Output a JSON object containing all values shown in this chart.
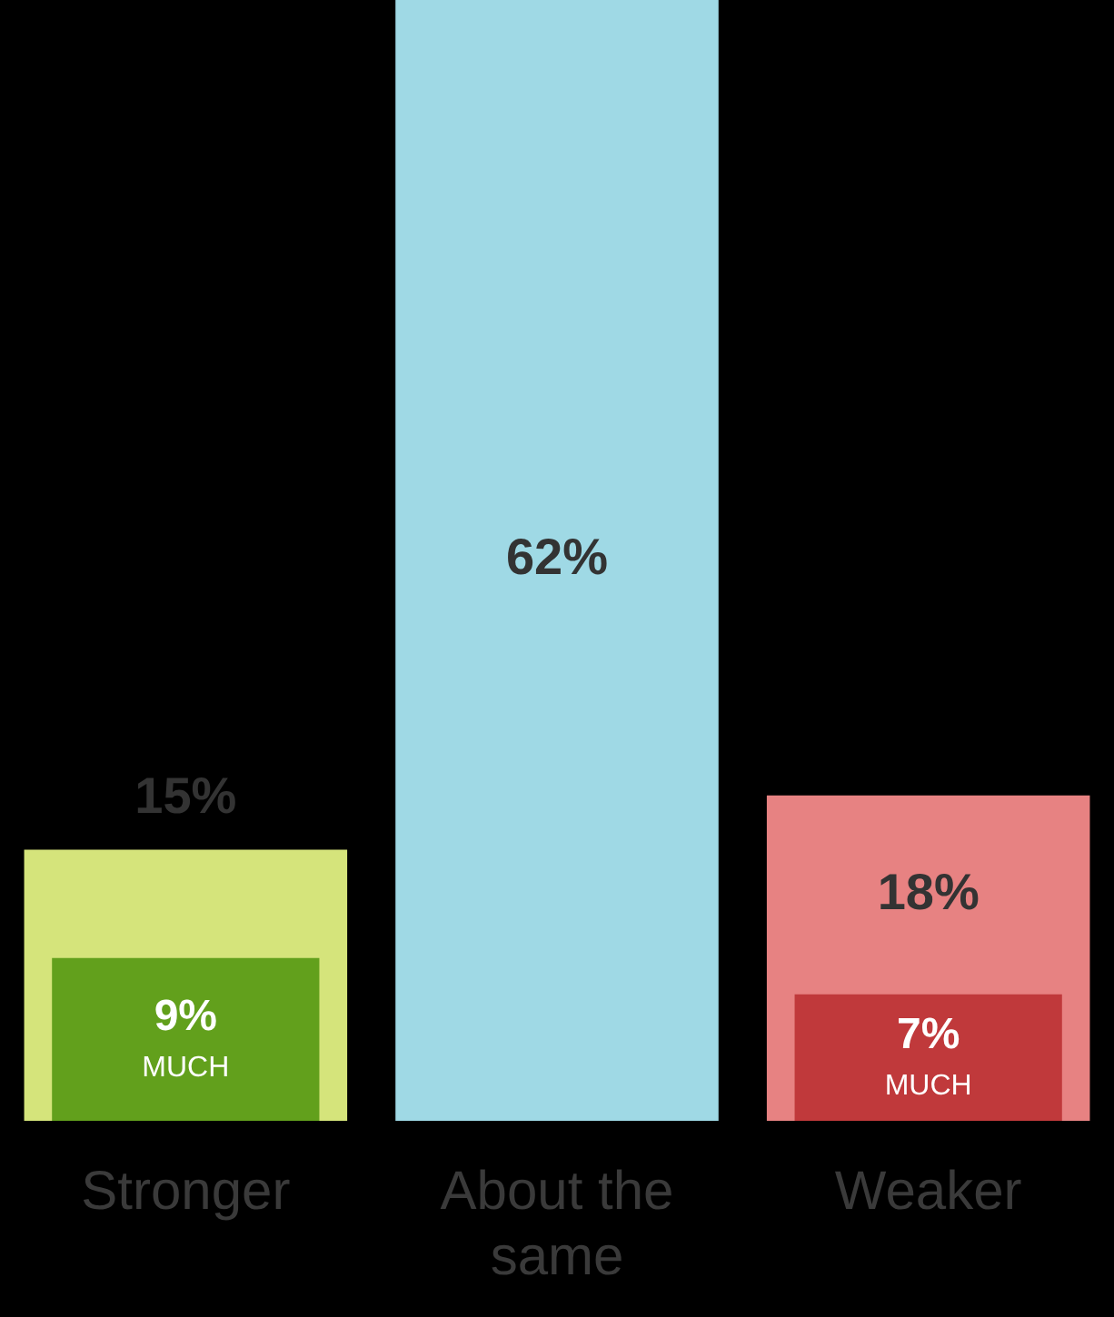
{
  "chart_data": {
    "type": "bar",
    "categories": [
      "Stronger",
      "About the same",
      "Weaker"
    ],
    "series": [
      {
        "colors": [
          "#d5e47b",
          "#9fd9e5",
          "#e78282"
        ],
        "values": [
          15,
          62,
          18
        ],
        "value_labels": [
          "15%",
          "62%",
          "18%"
        ]
      },
      {
        "name": "MUCH",
        "colors": [
          "#62a01c",
          null,
          "#c0393b"
        ],
        "values": [
          9,
          null,
          7
        ],
        "value_labels": [
          "9%",
          null,
          "7%"
        ]
      }
    ],
    "legend": false
  }
}
